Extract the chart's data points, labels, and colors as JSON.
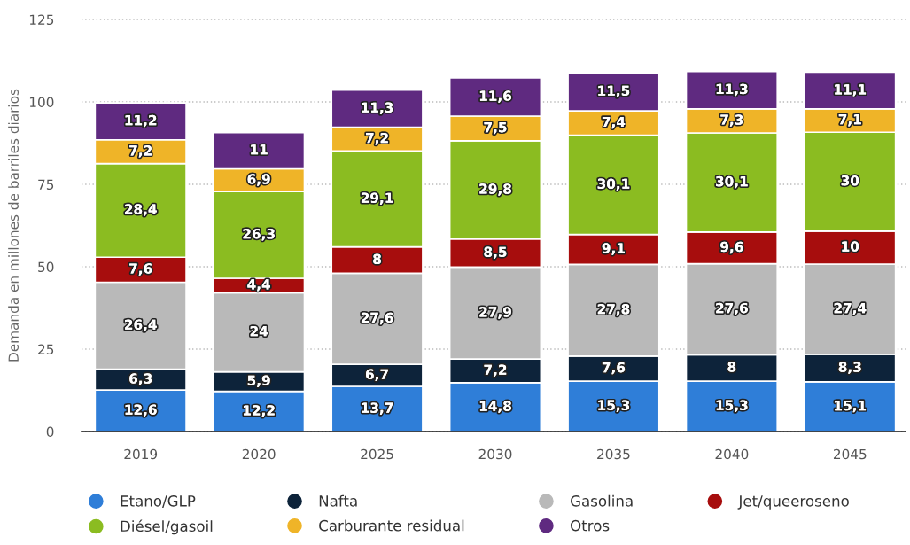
{
  "chart_data": {
    "type": "bar",
    "stacked": true,
    "ylabel": "Demanda en millones de barriles diarios",
    "categories": [
      "2019",
      "2020",
      "2025",
      "2030",
      "2035",
      "2040",
      "2045"
    ],
    "ylim": [
      0,
      125
    ],
    "yticks": [
      0,
      25,
      50,
      75,
      100,
      125
    ],
    "grid": "y",
    "legend": "bottom",
    "series": [
      {
        "name": "Etano/GLP",
        "color": "#2f7ed8",
        "values": [
          12.6,
          12.2,
          13.7,
          14.8,
          15.3,
          15.3,
          15.1
        ],
        "value_labels": [
          "12,6",
          "12,2",
          "13,7",
          "14,8",
          "15,3",
          "15,3",
          "15,1"
        ]
      },
      {
        "name": "Nafta",
        "color": "#0d233a",
        "values": [
          6.3,
          5.9,
          6.7,
          7.2,
          7.6,
          8,
          8.3
        ],
        "value_labels": [
          "6,3",
          "5,9",
          "6,7",
          "7,2",
          "7,6",
          "8",
          "8,3"
        ]
      },
      {
        "name": "Gasolina",
        "color": "#b9b9b9",
        "values": [
          26.4,
          24,
          27.6,
          27.9,
          27.8,
          27.6,
          27.4
        ],
        "value_labels": [
          "26,4",
          "24",
          "27,6",
          "27,9",
          "27,8",
          "27,6",
          "27,4"
        ]
      },
      {
        "name": "Jet/queeroseno",
        "color": "#a70d0d",
        "values": [
          7.6,
          4.4,
          8,
          8.5,
          9.1,
          9.6,
          10
        ],
        "value_labels": [
          "7,6",
          "4,4",
          "8",
          "8,5",
          "9,1",
          "9,6",
          "10"
        ]
      },
      {
        "name": "Diésel/gasoil",
        "color": "#8bbc21",
        "values": [
          28.4,
          26.3,
          29.1,
          29.8,
          30.1,
          30.1,
          30
        ],
        "value_labels": [
          "28,4",
          "26,3",
          "29,1",
          "29,8",
          "30,1",
          "30,1",
          "30"
        ]
      },
      {
        "name": "Carburante residual",
        "color": "#efb428",
        "values": [
          7.2,
          6.9,
          7.2,
          7.5,
          7.4,
          7.3,
          7.1
        ],
        "value_labels": [
          "7,2",
          "6,9",
          "7,2",
          "7,5",
          "7,4",
          "7,3",
          "7,1"
        ]
      },
      {
        "name": "Otros",
        "color": "#5f2a80",
        "values": [
          11.2,
          11,
          11.3,
          11.6,
          11.5,
          11.3,
          11.1
        ],
        "value_labels": [
          "11,2",
          "11",
          "11,3",
          "11,6",
          "11,5",
          "11,3",
          "11,1"
        ]
      }
    ]
  }
}
